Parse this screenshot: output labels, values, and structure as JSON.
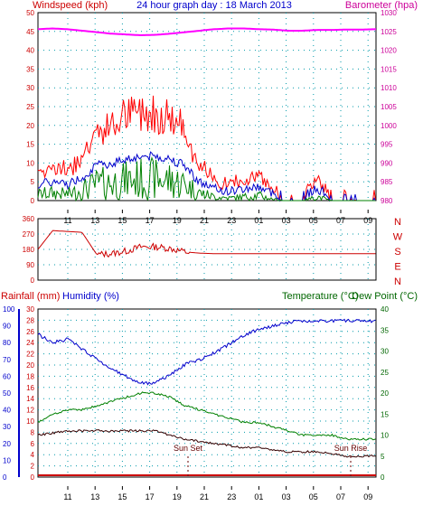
{
  "title": "24 hour graph day : 18 March 2013",
  "panel1": {
    "left_label": "Windspeed (kph)",
    "right_label": "Barometer (hpa)",
    "left_ticks": [
      "0",
      "5",
      "10",
      "15",
      "20",
      "25",
      "30",
      "35",
      "40",
      "45",
      "50"
    ],
    "right_ticks": [
      "980",
      "985",
      "990",
      "995",
      "1000",
      "1005",
      "1010",
      "1015",
      "1020",
      "1025",
      "1030"
    ],
    "x_ticks": [
      "11",
      "13",
      "15",
      "17",
      "19",
      "21",
      "23",
      "01",
      "03",
      "05",
      "07",
      "09"
    ]
  },
  "panel2": {
    "left_ticks": [
      "0",
      "90",
      "180",
      "270",
      "360"
    ],
    "compass": [
      "N",
      "W",
      "S",
      "E",
      "N"
    ]
  },
  "panel3": {
    "rain_label": "Rainfall (mm)",
    "hum_label": "Humidity (%)",
    "temp_label": "Temperature (°C)",
    "dew_label": "Dew Point (°C)",
    "hum_ticks": [
      "0",
      "10",
      "20",
      "30",
      "40",
      "50",
      "60",
      "70",
      "80",
      "90",
      "100"
    ],
    "rain_ticks": [
      "0",
      "2",
      "4",
      "6",
      "8",
      "10",
      "12",
      "14",
      "16",
      "18",
      "20",
      "22",
      "24",
      "26",
      "28",
      "30"
    ],
    "temp_ticks": [
      "0",
      "5",
      "10",
      "15",
      "20",
      "25",
      "30",
      "35",
      "40"
    ],
    "x_ticks": [
      "11",
      "13",
      "15",
      "17",
      "19",
      "21",
      "23",
      "01",
      "03",
      "05",
      "07",
      "09"
    ],
    "sunset": "Sun Set",
    "sunrise": "Sun Rise"
  },
  "colors": {
    "wind_gust": "#ff0000",
    "wind_avg": "#0000cc",
    "wind_speed": "#008000",
    "barometer": "#ff00ff",
    "direction": "#cc0000",
    "humidity": "#0000cc",
    "temperature": "#008000",
    "dewpoint": "#330000",
    "rainfall": "#cc0000",
    "axis_left": "#cc0000",
    "axis_right_1": "#cc0099",
    "axis_hum": "#0000cc",
    "axis_temp": "#006600",
    "title": "#0000cc"
  },
  "chart_data": [
    {
      "type": "line",
      "x": [
        "10:00",
        "11:00",
        "12:00",
        "13:00",
        "14:00",
        "15:00",
        "16:00",
        "17:00",
        "18:00",
        "19:00",
        "20:00",
        "21:00",
        "22:00",
        "23:00",
        "00:00",
        "01:00",
        "02:00",
        "03:00",
        "04:00",
        "05:00",
        "06:00",
        "07:00",
        "08:00",
        "09:00"
      ],
      "series": [
        {
          "name": "Windspeed (kph)",
          "axis": "left",
          "values": [
            5,
            6,
            5,
            8,
            13,
            14,
            16,
            17,
            17,
            16,
            13,
            6,
            3,
            2,
            3,
            4,
            1,
            0,
            0,
            3,
            0,
            0,
            0,
            0
          ]
        },
        {
          "name": "Barometer (hpa)",
          "axis": "right",
          "values": [
            1025.6,
            1025.8,
            1025.6,
            1025.2,
            1024.8,
            1024.4,
            1024.2,
            1024.0,
            1024.1,
            1024.4,
            1024.8,
            1025.2,
            1025.6,
            1025.8,
            1025.8,
            1025.6,
            1025.5,
            1025.2,
            1025.2,
            1025.4,
            1025.4,
            1025.5,
            1025.5,
            1025.6
          ]
        }
      ],
      "ylim": [
        0,
        50
      ],
      "y2lim": [
        980,
        1030
      ]
    },
    {
      "type": "line",
      "x": [
        "10:00",
        "11:00",
        "12:00",
        "13:00",
        "14:00",
        "15:00",
        "16:00",
        "17:00",
        "18:00",
        "19:00",
        "20:00",
        "21:00",
        "22:00",
        "23:00",
        "00:00",
        "01:00",
        "02:00",
        "03:00",
        "04:00",
        "05:00",
        "06:00",
        "07:00",
        "08:00",
        "09:00"
      ],
      "series": [
        {
          "name": "Wind direction",
          "values": [
            180,
            290,
            285,
            280,
            150,
            155,
            170,
            195,
            195,
            185,
            165,
            158,
            155,
            155,
            155,
            155,
            155,
            155,
            155,
            155,
            155,
            155,
            155,
            155
          ]
        }
      ],
      "ylim": [
        0,
        360
      ]
    },
    {
      "type": "line",
      "x": [
        "10:00",
        "11:00",
        "12:00",
        "13:00",
        "14:00",
        "15:00",
        "16:00",
        "17:00",
        "18:00",
        "19:00",
        "20:00",
        "21:00",
        "22:00",
        "23:00",
        "00:00",
        "01:00",
        "02:00",
        "03:00",
        "04:00",
        "05:00",
        "06:00",
        "07:00",
        "08:00",
        "09:00"
      ],
      "series": [
        {
          "name": "Humidity (%)",
          "axis": "humidity",
          "values": [
            85,
            80,
            82,
            76,
            70,
            64,
            60,
            56,
            56,
            61,
            67,
            70,
            74,
            79,
            84,
            88,
            90,
            92,
            93,
            93,
            93,
            93,
            93,
            93
          ]
        },
        {
          "name": "Temperature (°C)",
          "axis": "temperature",
          "values": [
            13,
            15,
            16,
            16,
            17,
            18,
            19,
            20,
            20,
            19,
            17,
            16,
            15,
            14,
            13,
            13,
            12,
            11,
            10,
            10,
            10,
            9,
            9,
            9
          ]
        },
        {
          "name": "Dew Point (°C)",
          "axis": "temperature",
          "values": [
            10,
            10.5,
            11,
            11,
            11,
            11,
            11,
            11,
            11,
            10,
            9,
            8.5,
            8,
            7.5,
            7,
            7,
            6.5,
            6,
            6,
            6,
            5.5,
            5,
            5,
            5
          ]
        },
        {
          "name": "Rainfall (mm)",
          "axis": "rainfall",
          "values": [
            0,
            0,
            0,
            0,
            0,
            0,
            0,
            0,
            0,
            0,
            0,
            0,
            0,
            0,
            0,
            0,
            0,
            0,
            0,
            0,
            0,
            0,
            0,
            0
          ]
        }
      ],
      "ylim": [
        0,
        100
      ],
      "y2lim": [
        0,
        40
      ]
    }
  ]
}
